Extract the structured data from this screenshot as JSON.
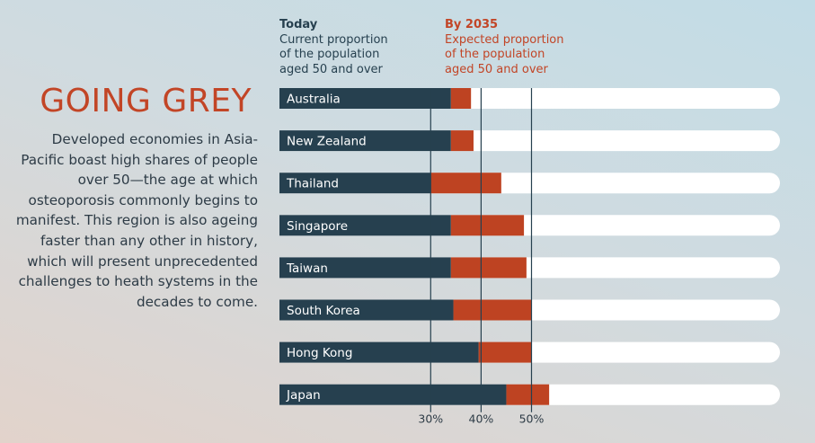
{
  "title": "GOING GREY",
  "description": "Developed economies in Asia-Pacific boast high shares of people over 50—the age at which osteoporosis commonly begins to manifest. This region is also ageing faster than any other in history, which will present unprecedented challenges to heath systems in the decades to come.",
  "legend": {
    "today": {
      "label": "Today",
      "desc": "Current proportion\nof the population\naged 50 and over"
    },
    "future": {
      "label": "By 2035",
      "desc": "Expected proportion\nof the population\naged 50 and over"
    }
  },
  "colors": {
    "today": "#26404f",
    "future": "#be4322",
    "track": "#ffffff",
    "title": "#c24526",
    "gridline": "#26404f"
  },
  "chart_data": {
    "type": "bar",
    "orientation": "horizontal",
    "stacked": true,
    "categories": [
      "Australia",
      "New Zealand",
      "Thailand",
      "Singapore",
      "Taiwan",
      "South Korea",
      "Hong Kong",
      "Japan"
    ],
    "series": [
      {
        "name": "Today",
        "values": [
          34,
          34,
          30,
          34,
          34,
          34.5,
          39.5,
          45
        ]
      },
      {
        "name": "By 2035",
        "values": [
          38,
          38.5,
          44,
          48.5,
          49,
          50,
          50,
          53.5
        ]
      }
    ],
    "x_ticks": [
      "30%",
      "40%",
      "50%"
    ],
    "x_tick_values": [
      30,
      40,
      50
    ],
    "x_axis_min": 0,
    "gridlines": [
      30,
      40,
      50
    ]
  }
}
